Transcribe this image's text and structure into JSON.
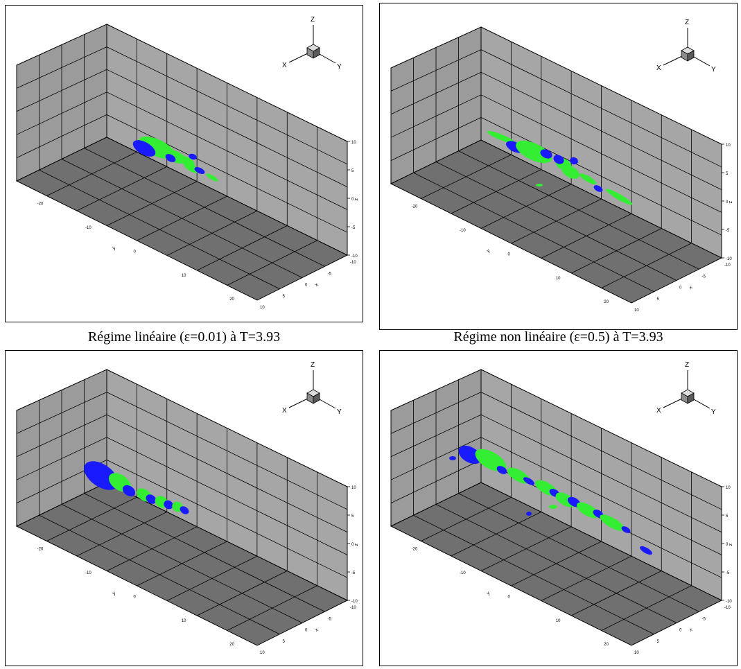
{
  "axis_triad": {
    "x": "X",
    "y": "Y",
    "z": "Z"
  },
  "axes": {
    "z_label": "z",
    "y_label": "y",
    "x_label": "x",
    "z_ticks": [
      "10",
      "5",
      "0",
      "-5",
      "-10"
    ],
    "y_ticks": [
      "-20",
      "-10",
      "0",
      "10",
      "20"
    ],
    "x_ticks": [
      "-10",
      "-5",
      "0",
      "5",
      "10"
    ]
  },
  "colors": {
    "iso_blue": "#1a1aff",
    "iso_green": "#33ee33",
    "wall": "#a6a6a6",
    "floor": "#707070"
  },
  "panels": [
    {
      "id": "p1",
      "caption": ""
    },
    {
      "id": "p2",
      "caption": ""
    },
    {
      "id": "p3",
      "caption": "Régime linéaire (ε=0.01) à T=3.93"
    },
    {
      "id": "p4",
      "caption": "Régime non linéaire (ε=0.5) à T=3.93"
    }
  ]
}
